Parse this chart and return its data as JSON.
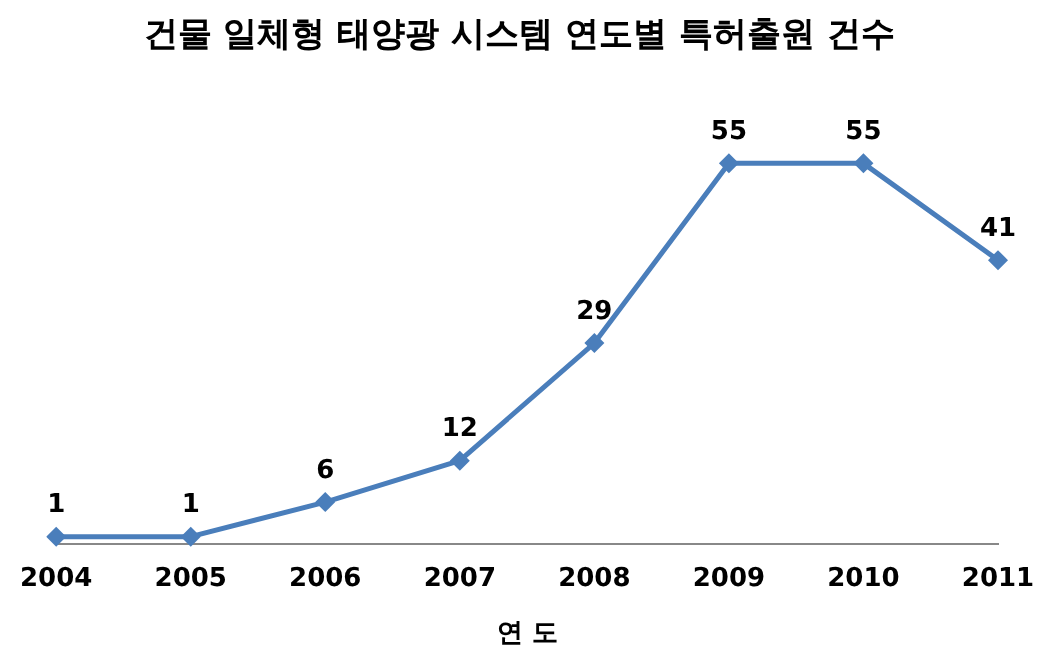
{
  "chart_data": {
    "type": "line",
    "title": "건물 일체형 태양광 시스템 연도별 특허출원 건수",
    "xlabel": "연 도",
    "categories": [
      "2004",
      "2005",
      "2006",
      "2007",
      "2008",
      "2009",
      "2010",
      "2011"
    ],
    "series": [
      {
        "color": "#4a7ebb",
        "values": [
          1,
          1,
          6,
          12,
          29,
          55,
          55,
          41
        ]
      }
    ],
    "data_labels": true,
    "marker": "diamond",
    "grid": false,
    "legend": false,
    "tick_labels": "x"
  }
}
